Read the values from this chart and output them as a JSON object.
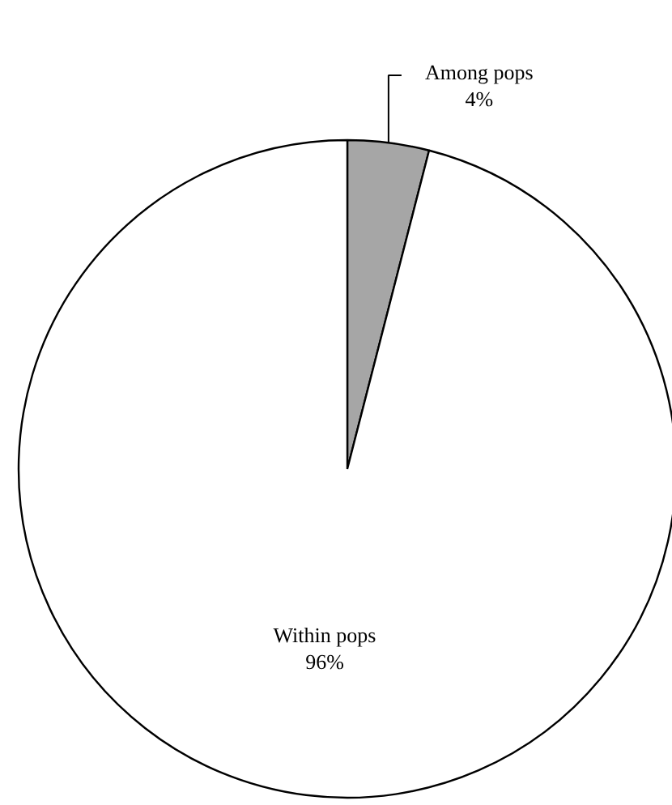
{
  "chart_data": {
    "type": "pie",
    "categories": [
      "Among pops",
      "Within pops"
    ],
    "values": [
      4,
      96
    ],
    "value_labels": [
      "4%",
      "96%"
    ],
    "colors": [
      "#a6a6a6",
      "#ffffff"
    ]
  }
}
